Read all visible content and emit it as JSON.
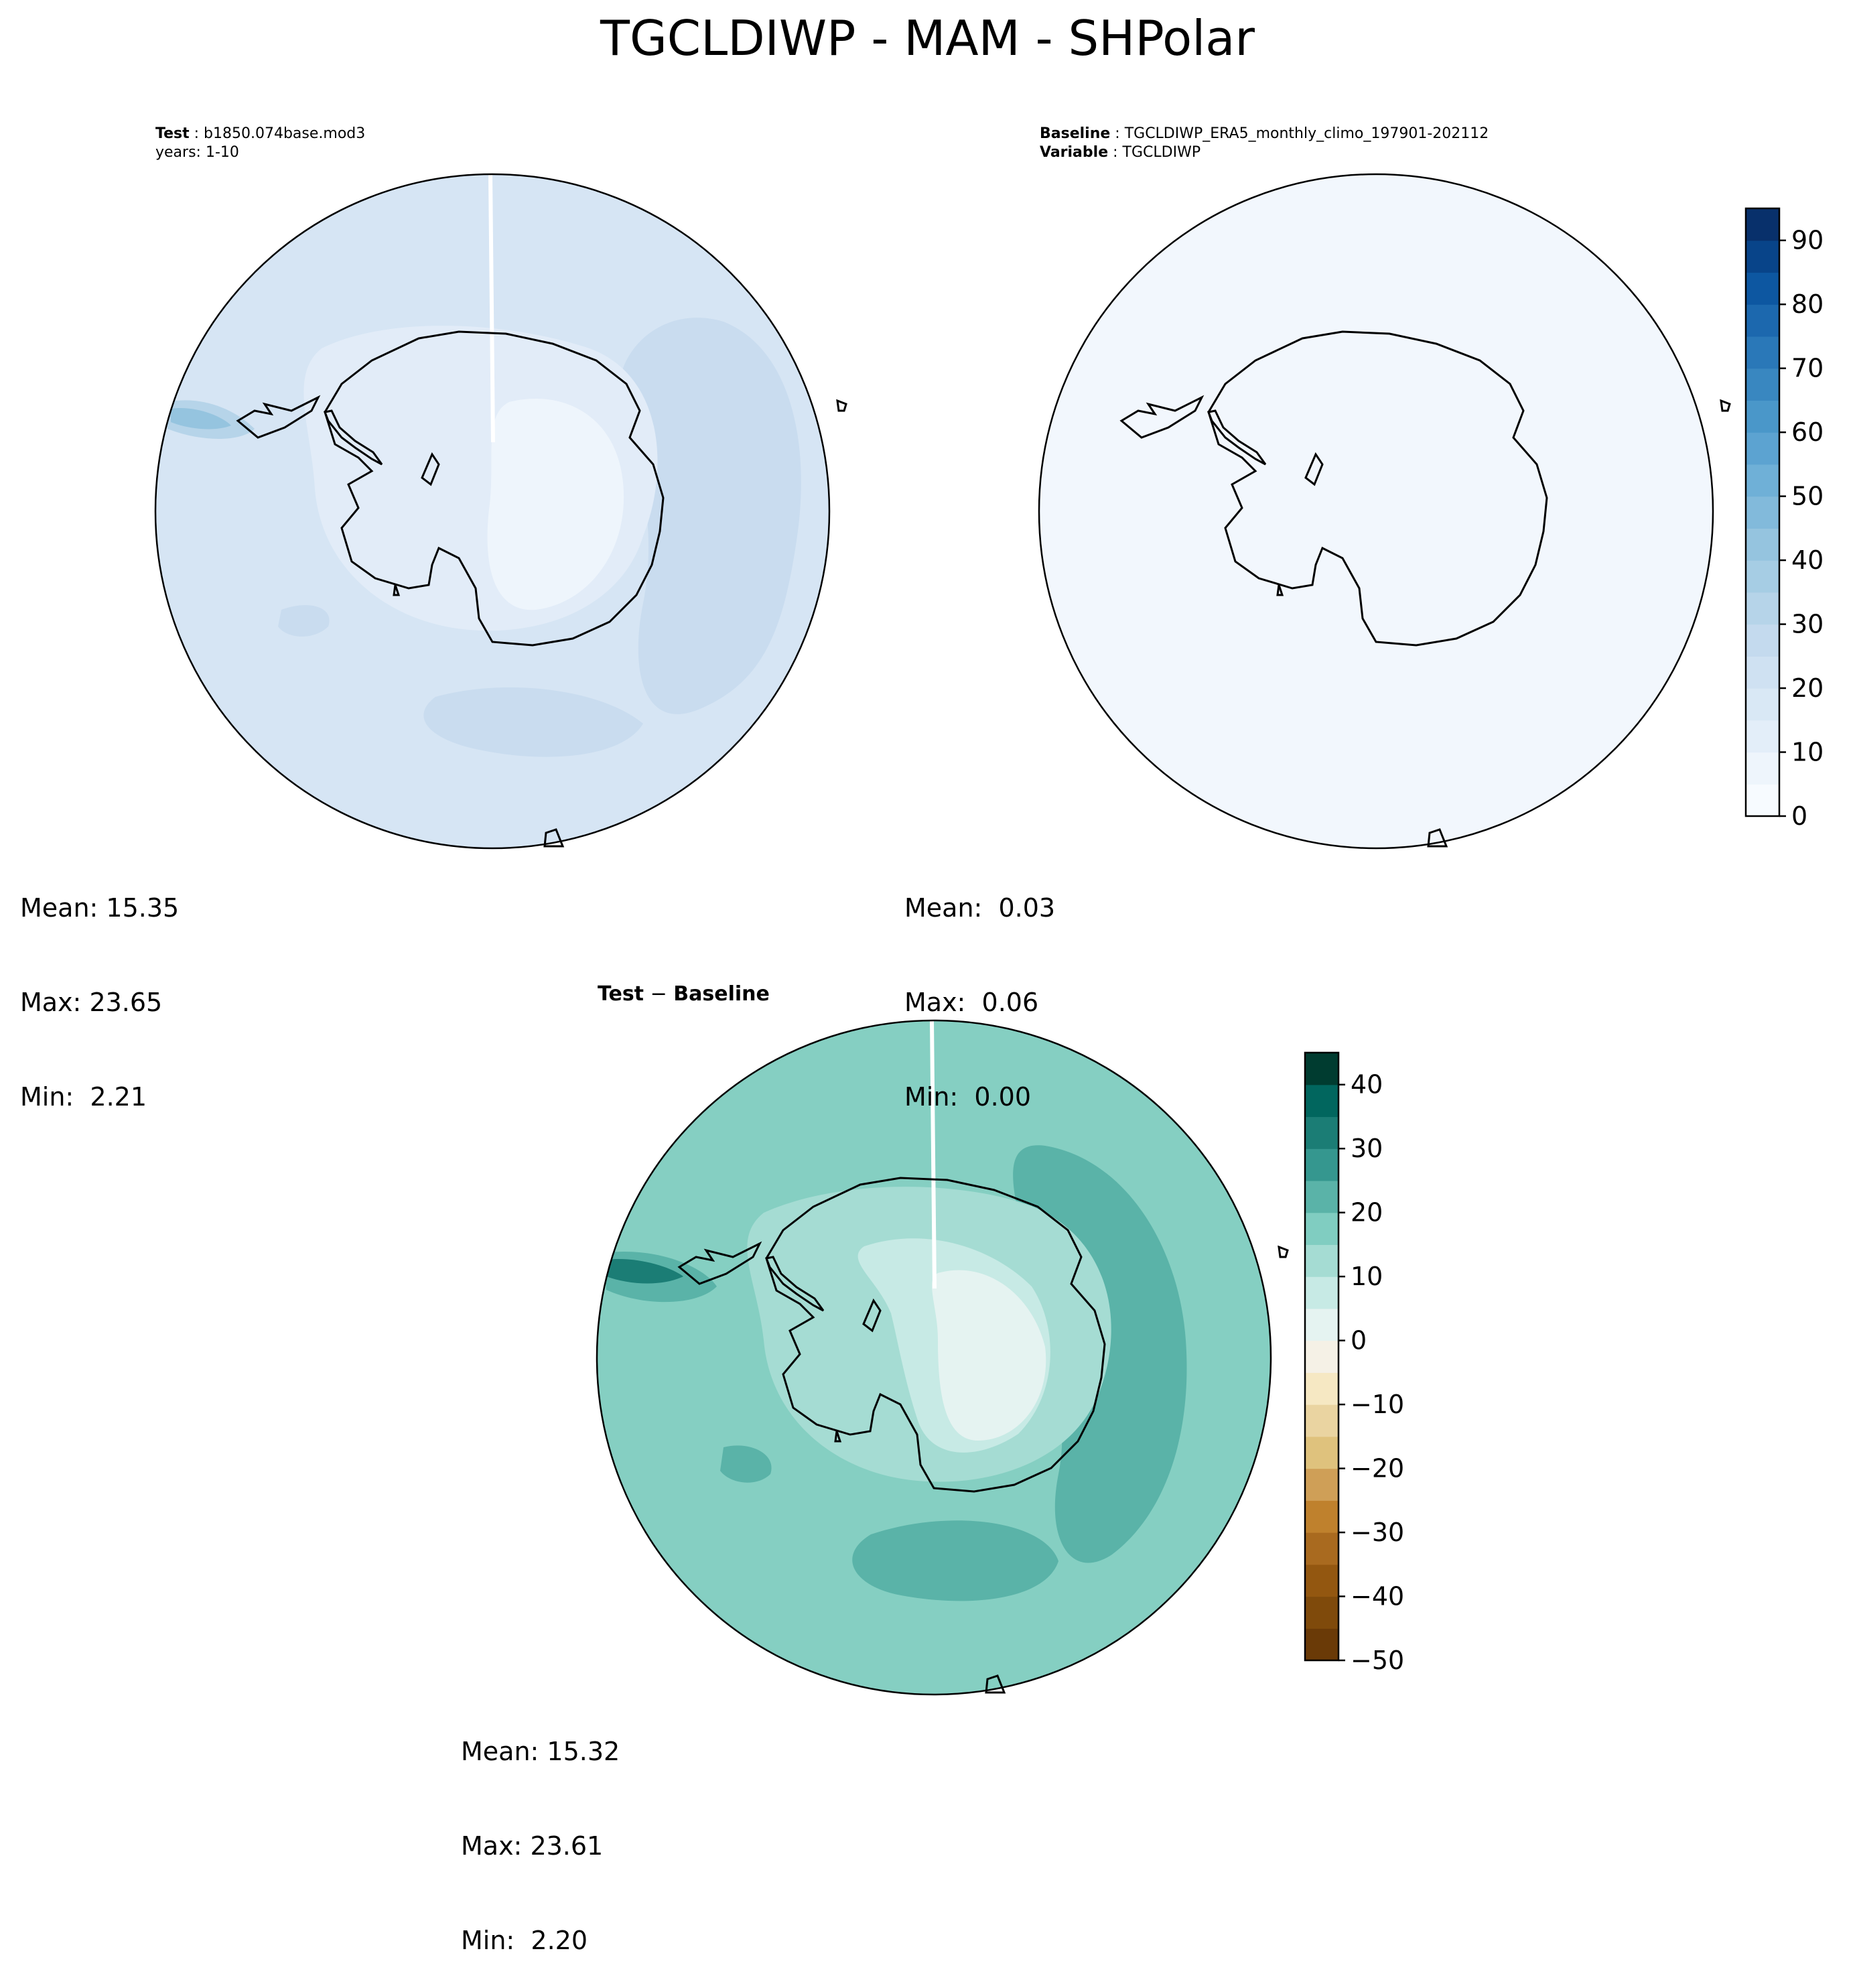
{
  "title": "TGCLDIWP - MAM - SHPolar",
  "panels": {
    "test": {
      "label_key": "Test",
      "label_value": "b1850.074base.mod3",
      "years": "years: 1-10",
      "mean": "Mean: 15.35",
      "max": "Max: 23.65",
      "min": "Min:  2.21"
    },
    "baseline": {
      "label_key": "Baseline",
      "label_value": "TGCLDIWP_ERA5_monthly_climo_197901-202112",
      "variable_key": "Variable",
      "variable_value": "TGCLDIWP",
      "mean": "Mean:  0.03",
      "max": "Max:  0.06",
      "min": "Min:  0.00"
    },
    "diff": {
      "title_a": "Test",
      "title_sep": " − ",
      "title_b": "Baseline",
      "mean": "Mean: 15.32",
      "max": "Max: 23.61",
      "min": "Min:  2.20"
    }
  },
  "colorbars": {
    "main": {
      "colormap": "Blues",
      "ticks": [
        "0",
        "10",
        "20",
        "30",
        "40",
        "50",
        "60",
        "70",
        "80",
        "90"
      ],
      "range": [
        0,
        95
      ],
      "levels": 19
    },
    "diff": {
      "colormap": "BrBG",
      "ticks": [
        "−50",
        "−40",
        "−30",
        "−20",
        "−10",
        "0",
        "10",
        "20",
        "30",
        "40"
      ],
      "range": [
        -50,
        45
      ],
      "levels": 19
    }
  },
  "colors": {
    "blues": [
      "#f7fbff",
      "#eef5fc",
      "#e3eef9",
      "#d9e8f5",
      "#cfe1f2",
      "#c4daee",
      "#b6d4e9",
      "#a6cde4",
      "#95c4df",
      "#82badb",
      "#6fb0d7",
      "#5ca3d1",
      "#4a97c9",
      "#3987c0",
      "#2a78b8",
      "#1c68ae",
      "#0d57a1",
      "#084489",
      "#08306b"
    ],
    "brbg": [
      "#6a3a07",
      "#7f4a0b",
      "#935710",
      "#a96a1f",
      "#bf812d",
      "#cf9f57",
      "#dfc27d",
      "#ead4a1",
      "#f6e8c3",
      "#f5f1e6",
      "#e5f3f1",
      "#c7eae5",
      "#a5dcd3",
      "#80cdc1",
      "#5ab3a8",
      "#35978f",
      "#1b7d75",
      "#01665e",
      "#003c30"
    ]
  }
}
